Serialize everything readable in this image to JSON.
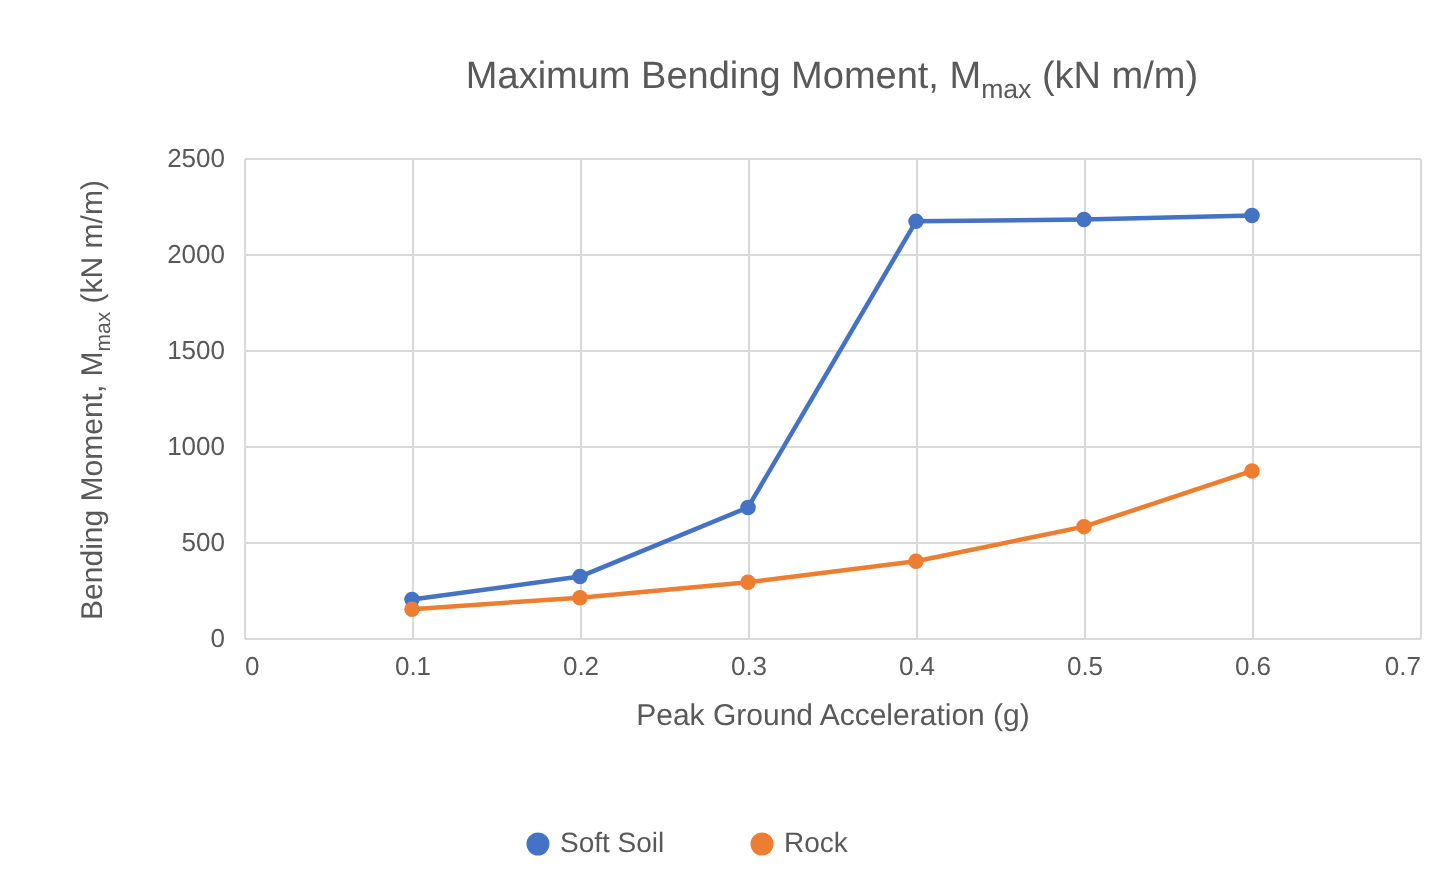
{
  "chart_data": {
    "type": "line",
    "title": "Maximum Bending Moment, M$_{max}$ (kN m/m)",
    "xlabel": "Peak Ground Acceleration (g)",
    "ylabel": "Bending Moment, M$_{max}$ (kN m/m)",
    "x": [
      0.1,
      0.2,
      0.3,
      0.4,
      0.5,
      0.6
    ],
    "series": [
      {
        "name": "Soft Soil",
        "color": "#4472c4",
        "values": [
          200,
          320,
          680,
          2170,
          2180,
          2200
        ]
      },
      {
        "name": "Rock",
        "color": "#ed7d31",
        "values": [
          150,
          210,
          290,
          400,
          580,
          870
        ]
      }
    ],
    "xlim": [
      0,
      0.7
    ],
    "xticks": [
      0,
      0.1,
      0.2,
      0.3,
      0.4,
      0.5,
      0.6,
      0.7
    ],
    "ylim": [
      0,
      2500
    ],
    "yticks": [
      0,
      500,
      1000,
      1500,
      2000,
      2500
    ],
    "grid": true,
    "legend": "bottom",
    "marker": "circle",
    "line_style": "solid"
  }
}
